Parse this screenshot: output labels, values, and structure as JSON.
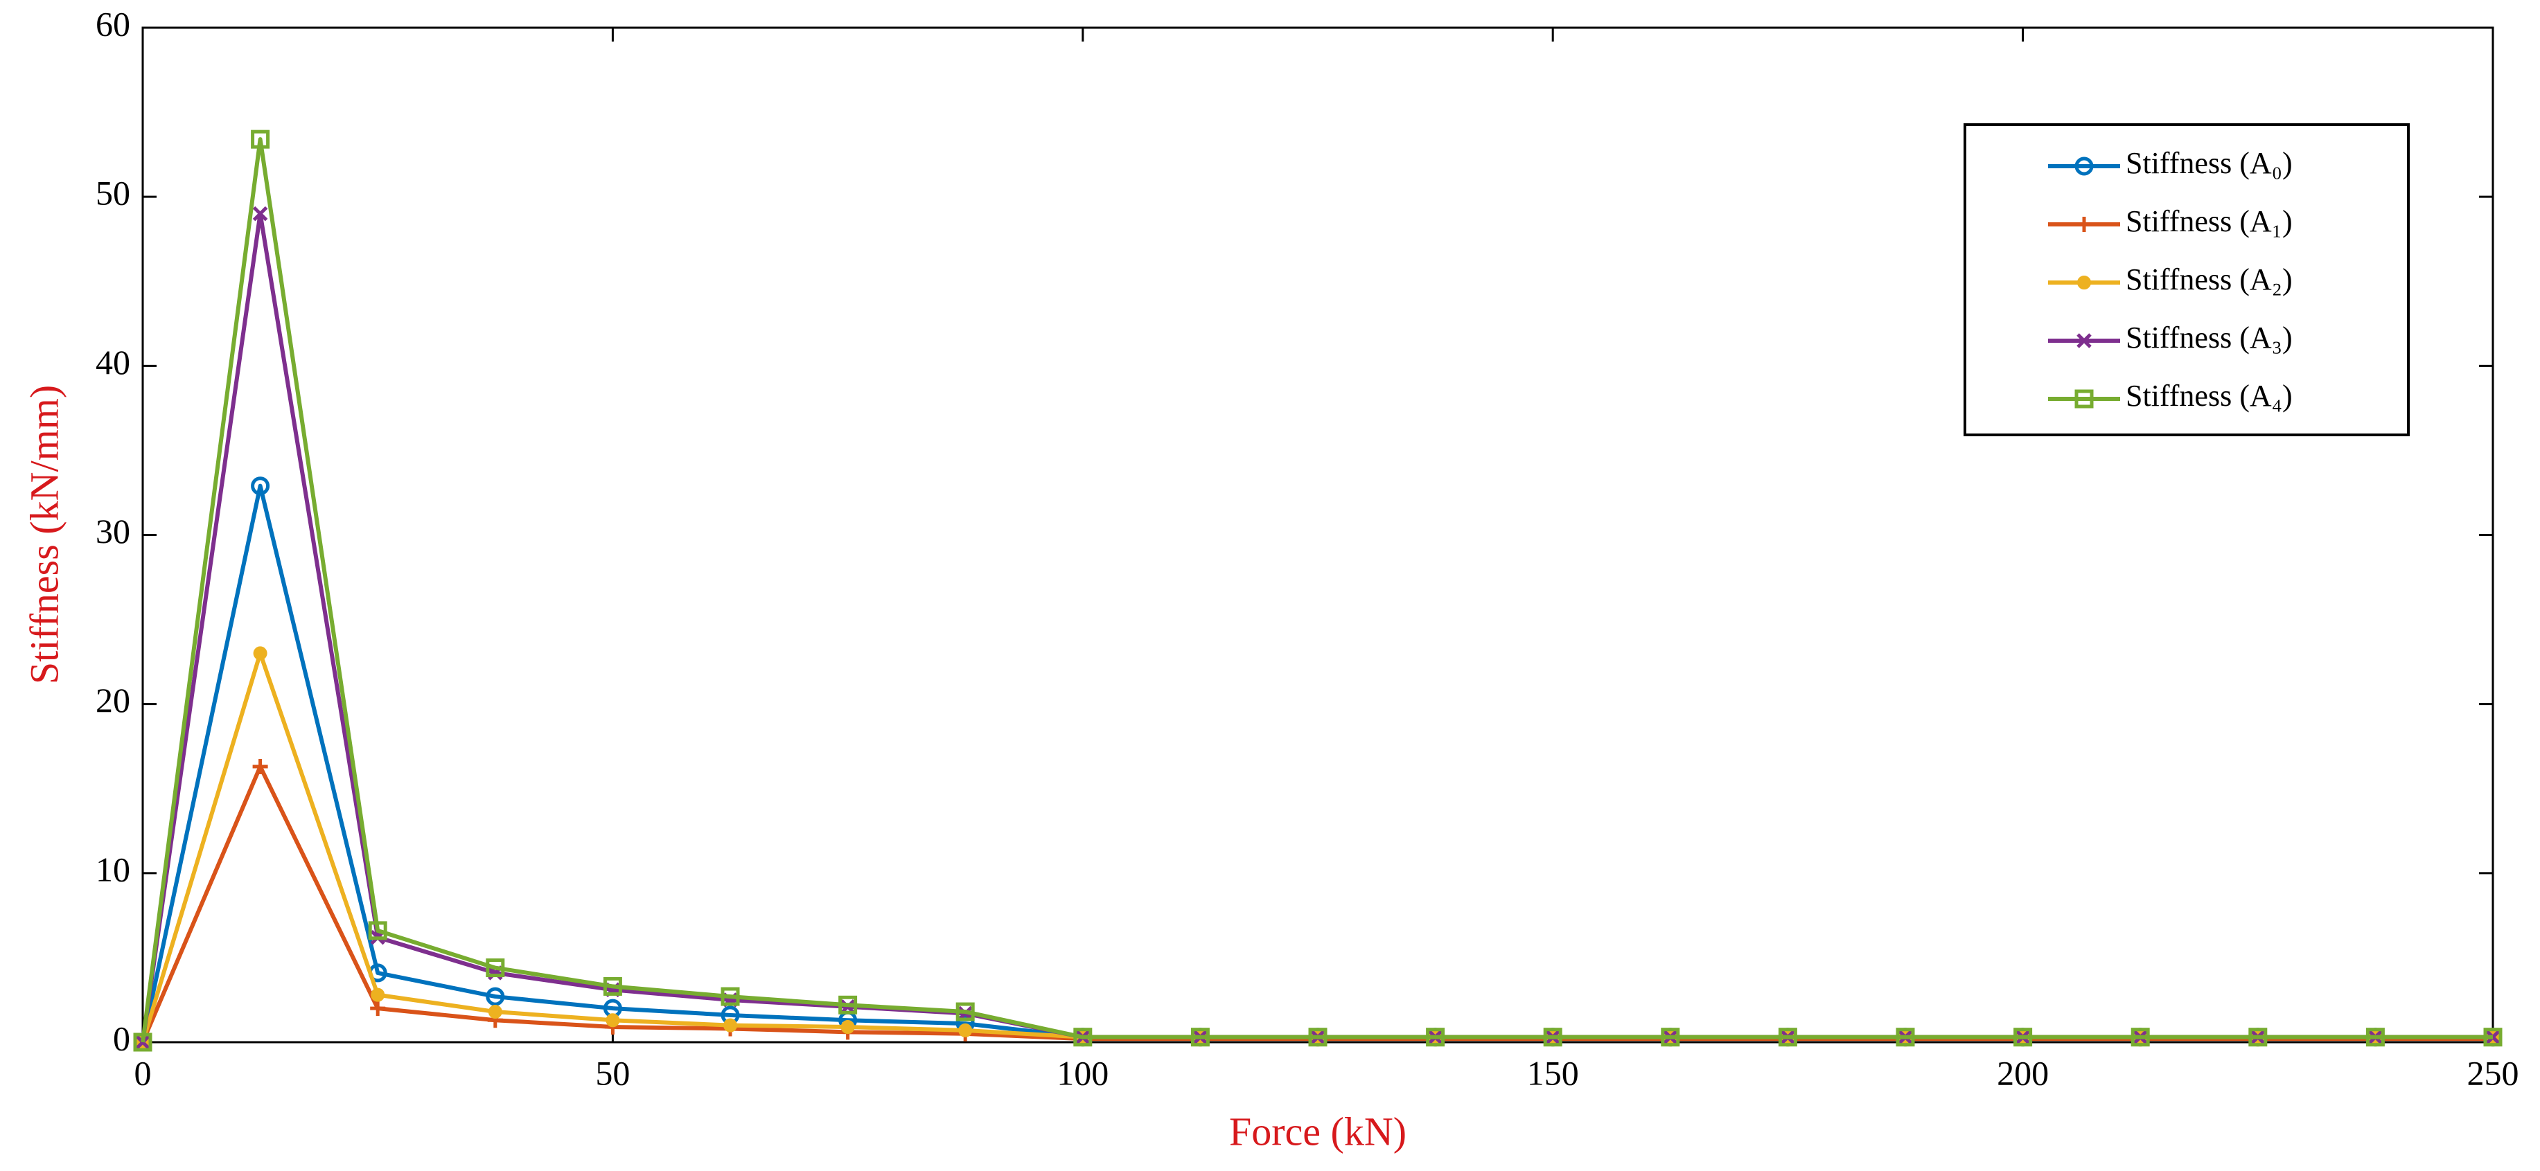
{
  "chart_data": {
    "type": "line",
    "x_label": "Force (kN)",
    "y_label": "Stiffness (kN/mm)",
    "x": [
      0,
      12.5,
      25,
      37.5,
      50,
      62.5,
      75,
      87.5,
      100,
      112.5,
      125,
      137.5,
      150,
      162.5,
      175,
      187.5,
      200,
      212.5,
      225,
      237.5,
      250
    ],
    "series": [
      {
        "name": "Stiffness (A₀)",
        "color": "#0072bd",
        "marker": "circle",
        "values": [
          0,
          32.9,
          4.1,
          2.7,
          2.0,
          1.6,
          1.3,
          1.1,
          0.3,
          0.3,
          0.3,
          0.3,
          0.3,
          0.3,
          0.3,
          0.3,
          0.3,
          0.3,
          0.3,
          0.3,
          0.3
        ]
      },
      {
        "name": "Stiffness (A₁)",
        "color": "#d95319",
        "marker": "plus",
        "values": [
          0,
          16.3,
          2.0,
          1.3,
          0.9,
          0.8,
          0.6,
          0.5,
          0.2,
          0.2,
          0.2,
          0.2,
          0.2,
          0.2,
          0.2,
          0.2,
          0.2,
          0.2,
          0.2,
          0.2,
          0.2
        ]
      },
      {
        "name": "Stiffness (A₂)",
        "color": "#edb120",
        "marker": "dot",
        "values": [
          0,
          23.0,
          2.8,
          1.8,
          1.3,
          1.0,
          0.9,
          0.7,
          0.3,
          0.3,
          0.3,
          0.3,
          0.3,
          0.3,
          0.3,
          0.3,
          0.3,
          0.3,
          0.3,
          0.3,
          0.3
        ]
      },
      {
        "name": "Stiffness (A₃)",
        "color": "#7e2f8e",
        "marker": "cross",
        "values": [
          0,
          49.0,
          6.2,
          4.1,
          3.1,
          2.5,
          2.1,
          1.7,
          0.3,
          0.3,
          0.3,
          0.3,
          0.3,
          0.3,
          0.3,
          0.3,
          0.3,
          0.3,
          0.3,
          0.3,
          0.3
        ]
      },
      {
        "name": "Stiffness (A₄)",
        "color": "#77ac30",
        "marker": "square",
        "values": [
          0,
          53.4,
          6.6,
          4.4,
          3.3,
          2.7,
          2.2,
          1.8,
          0.3,
          0.3,
          0.3,
          0.3,
          0.3,
          0.3,
          0.3,
          0.3,
          0.3,
          0.3,
          0.3,
          0.3,
          0.3
        ]
      }
    ],
    "xlim": [
      0,
      250
    ],
    "xticks": [
      0,
      50,
      100,
      150,
      200,
      250
    ],
    "ylim": [
      0,
      60
    ],
    "yticks": [
      0,
      10,
      20,
      30,
      40,
      50,
      60
    ],
    "grid": false,
    "legend": "upper right"
  }
}
